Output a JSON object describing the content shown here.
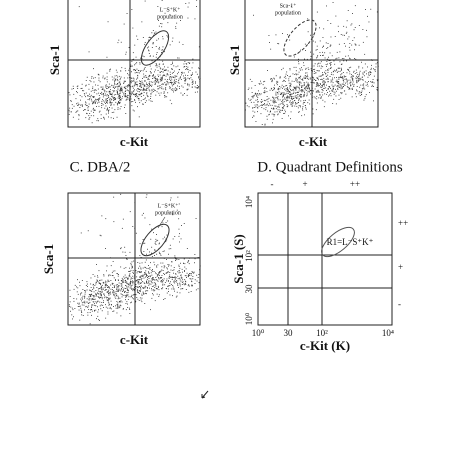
{
  "panel_a": {
    "y_label": "Sca-1",
    "x_label": "c-Kit",
    "annotation": [
      "L⁻S⁺K⁺",
      "population"
    ]
  },
  "panel_b": {
    "y_label": "Sca-1",
    "x_label": "c-Kit",
    "annotation": [
      "Sca-1⁺",
      "population"
    ]
  },
  "panel_c": {
    "title": "C. DBA/2",
    "y_label": "Sca-1",
    "x_label": "c-Kit",
    "annotation": [
      "L⁻S⁺K⁺",
      "population"
    ]
  },
  "panel_d": {
    "title": "D. Quadrant Definitions",
    "y_label": "Sca-1 (S)",
    "x_label": "c-Kit (K)",
    "top_labels": [
      "-",
      "+",
      "++"
    ],
    "right_labels": [
      "++",
      "+",
      "-"
    ],
    "y_tick_labels": [
      "10⁴",
      "10²",
      "30",
      "10⁰"
    ],
    "x_tick_labels": [
      "10⁰",
      "30",
      "10²",
      "10⁴"
    ],
    "region_label": "R1=L⁻S⁺K⁺"
  }
}
